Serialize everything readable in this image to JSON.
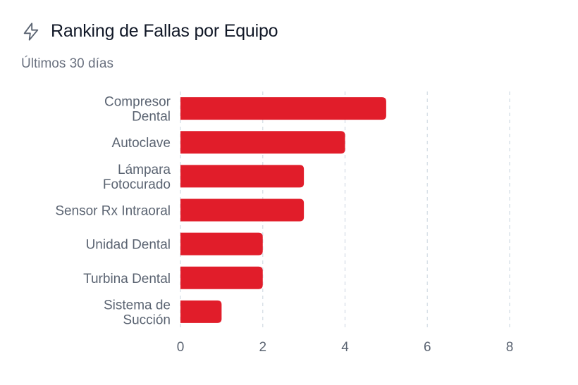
{
  "header": {
    "title": "Ranking de Fallas por Equipo",
    "subtitle": "Últimos 30 días",
    "icon": "lightning-icon"
  },
  "colors": {
    "bar": "#e11d2a",
    "grid": "#d6dee6",
    "text": "#5b6472"
  },
  "chart_data": {
    "type": "bar",
    "orientation": "horizontal",
    "title": "",
    "xlabel": "",
    "ylabel": "",
    "categories": [
      [
        "Compresor",
        "Dental"
      ],
      [
        "Autoclave"
      ],
      [
        "Lámpara",
        "Fotocurado"
      ],
      [
        "Sensor Rx Intraoral"
      ],
      [
        "Unidad Dental"
      ],
      [
        "Turbina Dental"
      ],
      [
        "Sistema de",
        "Succión"
      ]
    ],
    "values": [
      5,
      4,
      3,
      3,
      2,
      2,
      1
    ],
    "xlim": [
      0,
      8
    ],
    "xticks": [
      0,
      2,
      4,
      6,
      8
    ],
    "grid": "vertical-dashed",
    "legend": "none"
  }
}
